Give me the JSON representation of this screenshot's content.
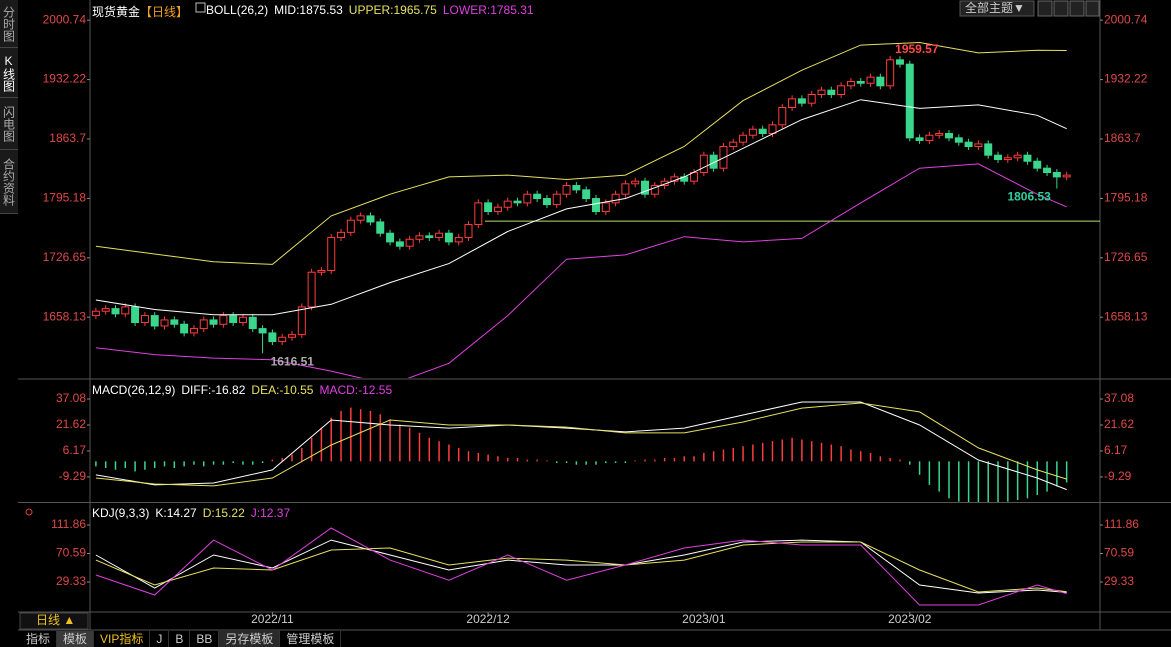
{
  "ui": {
    "sidebar": [
      "分时图",
      "K线图",
      "闪电图",
      "合约资料"
    ],
    "theme_button": "全部主题▼",
    "period_selector": "日线 ▲",
    "bottom_tabs": [
      "指标",
      "模板",
      "VIP指标",
      "J",
      "B",
      "BB",
      "另存模板",
      "管理模板"
    ]
  },
  "chart_data": [
    {
      "type": "candlestick",
      "title": "现货黄金",
      "period": "【日线】",
      "indicator": "BOLL(26,2)",
      "xlim": [
        -0.6,
        102.4
      ],
      "ylim": [
        1588,
        2024
      ],
      "yticks": [
        2000.74,
        1932.22,
        1863.7,
        1795.18,
        1726.65,
        1658.13
      ],
      "up_color": "#ff3c3c",
      "down_color": "#3ad68c",
      "open": [
        1660,
        1665,
        1668,
        1662,
        1670,
        1652,
        1660,
        1648,
        1655,
        1650,
        1640,
        1645,
        1655,
        1650,
        1660,
        1652,
        1658,
        1645,
        1640,
        1630,
        1635,
        1638,
        1670,
        1710,
        1712,
        1750,
        1756,
        1770,
        1775,
        1768,
        1755,
        1745,
        1740,
        1748,
        1752,
        1750,
        1755,
        1745,
        1750,
        1765,
        1790,
        1780,
        1785,
        1792,
        1790,
        1800,
        1795,
        1788,
        1800,
        1810,
        1805,
        1795,
        1780,
        1790,
        1800,
        1812,
        1815,
        1800,
        1810,
        1815,
        1820,
        1815,
        1825,
        1845,
        1830,
        1855,
        1860,
        1868,
        1875,
        1870,
        1880,
        1900,
        1910,
        1905,
        1915,
        1920,
        1915,
        1925,
        1930,
        1928,
        1935,
        1925,
        1955,
        1950,
        1865,
        1862,
        1868,
        1870,
        1865,
        1860,
        1855,
        1858,
        1845,
        1840,
        1842,
        1845,
        1838,
        1830,
        1825,
        1820
      ],
      "high": [
        1669,
        1672,
        1672,
        1674,
        1674,
        1664,
        1664,
        1659,
        1659,
        1654,
        1649,
        1659,
        1659,
        1664,
        1664,
        1662,
        1662,
        1649,
        1644,
        1639,
        1642,
        1674,
        1714,
        1716,
        1754,
        1760,
        1774,
        1779,
        1779,
        1772,
        1759,
        1749,
        1752,
        1756,
        1756,
        1759,
        1759,
        1754,
        1769,
        1794,
        1794,
        1789,
        1796,
        1796,
        1804,
        1804,
        1799,
        1804,
        1814,
        1814,
        1809,
        1799,
        1794,
        1804,
        1816,
        1819,
        1819,
        1814,
        1819,
        1824,
        1824,
        1829,
        1849,
        1849,
        1859,
        1864,
        1872,
        1879,
        1879,
        1884,
        1904,
        1914,
        1914,
        1919,
        1924,
        1924,
        1929,
        1934,
        1934,
        1939,
        1939,
        1959.57,
        1959,
        1954,
        1869,
        1872,
        1874,
        1874,
        1869,
        1864,
        1862,
        1862,
        1849,
        1846,
        1849,
        1849,
        1842,
        1834,
        1829,
        1826
      ],
      "low": [
        1656,
        1661,
        1658,
        1658,
        1648,
        1648,
        1644,
        1644,
        1646,
        1636,
        1636,
        1641,
        1646,
        1646,
        1648,
        1648,
        1641,
        1616.51,
        1626,
        1626,
        1631,
        1634,
        1666,
        1706,
        1708,
        1746,
        1752,
        1766,
        1764,
        1751,
        1741,
        1736,
        1736,
        1744,
        1746,
        1746,
        1741,
        1741,
        1746,
        1761,
        1776,
        1776,
        1781,
        1786,
        1786,
        1791,
        1784,
        1784,
        1796,
        1801,
        1791,
        1776,
        1776,
        1786,
        1796,
        1808,
        1796,
        1796,
        1806,
        1811,
        1811,
        1811,
        1821,
        1826,
        1826,
        1851,
        1856,
        1864,
        1866,
        1866,
        1876,
        1896,
        1901,
        1901,
        1911,
        1911,
        1911,
        1921,
        1924,
        1924,
        1921,
        1921,
        1946,
        1861,
        1858,
        1858,
        1864,
        1861,
        1856,
        1851,
        1851,
        1841,
        1836,
        1836,
        1838,
        1834,
        1826,
        1821,
        1806.53,
        1816
      ],
      "close": [
        1665,
        1668,
        1662,
        1670,
        1652,
        1660,
        1648,
        1655,
        1650,
        1640,
        1645,
        1655,
        1650,
        1660,
        1652,
        1658,
        1645,
        1640,
        1630,
        1635,
        1638,
        1670,
        1710,
        1712,
        1750,
        1756,
        1770,
        1775,
        1768,
        1755,
        1745,
        1740,
        1748,
        1752,
        1750,
        1755,
        1745,
        1750,
        1765,
        1790,
        1780,
        1785,
        1792,
        1790,
        1800,
        1795,
        1788,
        1800,
        1810,
        1805,
        1795,
        1780,
        1790,
        1800,
        1812,
        1815,
        1800,
        1810,
        1815,
        1820,
        1815,
        1825,
        1845,
        1830,
        1855,
        1860,
        1868,
        1875,
        1870,
        1880,
        1900,
        1910,
        1905,
        1915,
        1920,
        1915,
        1925,
        1930,
        1928,
        1935,
        1925,
        1955,
        1950,
        1865,
        1862,
        1868,
        1870,
        1865,
        1860,
        1855,
        1858,
        1845,
        1840,
        1842,
        1845,
        1838,
        1830,
        1825,
        1820,
        1822
      ],
      "hline": 1769,
      "hline_color": "#b8e070",
      "series": [
        {
          "name": "MID:1875.53",
          "color": "#ffffff",
          "x": [
            0,
            6,
            12,
            18,
            24,
            30,
            36,
            42,
            48,
            54,
            60,
            66,
            72,
            78,
            84,
            90,
            96,
            99
          ],
          "values": [
            1678,
            1667,
            1661,
            1661,
            1673,
            1698,
            1720,
            1757,
            1783,
            1795,
            1820,
            1853,
            1886,
            1909,
            1899,
            1903,
            1891,
            1875.53
          ]
        },
        {
          "name": "UPPER:1965.75",
          "color": "#e8e060",
          "x": [
            0,
            6,
            12,
            18,
            24,
            30,
            36,
            42,
            48,
            54,
            60,
            66,
            72,
            78,
            84,
            90,
            96,
            99
          ],
          "values": [
            1740,
            1731,
            1722,
            1719,
            1775,
            1800,
            1820,
            1822,
            1817,
            1822,
            1855,
            1908,
            1943,
            1972,
            1975,
            1963,
            1966,
            1965.75
          ]
        },
        {
          "name": "LOWER:1785.31",
          "color": "#e040e0",
          "x": [
            0,
            6,
            12,
            18,
            24,
            30,
            36,
            42,
            48,
            54,
            60,
            66,
            72,
            78,
            84,
            90,
            96,
            99
          ],
          "values": [
            1623,
            1615,
            1611,
            1609,
            1596,
            1580,
            1605,
            1660,
            1725,
            1730,
            1751,
            1745,
            1749,
            1790,
            1830,
            1835,
            1800,
            1785.31
          ]
        }
      ]
    },
    {
      "type": "macd",
      "title": "MACD(26,12,9)",
      "xlim": [
        -0.6,
        102.4
      ],
      "ylim": [
        -24.2,
        48.4
      ],
      "yticks": [
        37.08,
        21.62,
        6.17,
        -9.29
      ],
      "histogram": {
        "name": "MACD:-12.55",
        "color": "#e040e0",
        "up_color": "#ff3c3c",
        "down_color": "#3ad68c",
        "values": [
          -3,
          -4,
          -5,
          -4,
          -6,
          -5,
          -4,
          -3,
          -4,
          -3,
          -2,
          -3,
          -2,
          -2,
          -1,
          -2,
          -2,
          -1,
          1,
          2,
          4,
          8,
          14,
          20,
          26,
          30,
          32,
          31,
          30,
          28,
          25,
          22,
          20,
          17,
          14,
          12,
          10,
          8,
          6,
          5,
          4,
          3,
          2,
          2,
          1,
          1,
          0.5,
          -1,
          -1,
          -2,
          -2,
          -2,
          -1,
          -1,
          -1,
          0.5,
          1,
          1,
          2,
          2,
          3,
          3,
          5,
          6,
          7,
          8,
          9,
          10,
          11,
          12,
          13,
          14,
          13,
          12,
          11,
          10,
          9,
          7,
          6,
          5,
          3,
          2,
          1,
          -2,
          -8,
          -14,
          -18,
          -22,
          -24,
          -25,
          -26,
          -26,
          -25,
          -24,
          -23,
          -22,
          -20,
          -18,
          -15,
          -12.55
        ]
      },
      "series": [
        {
          "name": "DIFF:-16.82",
          "color": "#ffffff",
          "x": [
            0,
            6,
            12,
            18,
            24,
            30,
            36,
            42,
            48,
            54,
            60,
            66,
            72,
            78,
            84,
            90,
            96,
            99
          ],
          "values": [
            -8.1,
            -14,
            -12.9,
            -5.1,
            24.6,
            21.6,
            19.8,
            21.6,
            19.8,
            17.5,
            19.8,
            27.6,
            35.3,
            35.3,
            21.6,
            0.8,
            -9.9,
            -16.82
          ]
        },
        {
          "name": "DEA:-10.55",
          "color": "#e8e060",
          "x": [
            0,
            6,
            12,
            18,
            24,
            30,
            36,
            42,
            48,
            54,
            60,
            66,
            72,
            78,
            84,
            90,
            96,
            99
          ],
          "values": [
            -9.9,
            -13.5,
            -14.6,
            -9.9,
            9.7,
            24.6,
            21.6,
            21.6,
            20.4,
            16.9,
            16.9,
            23.4,
            31.7,
            34.7,
            29.4,
            8.0,
            -5.1,
            -10.55
          ]
        }
      ]
    },
    {
      "type": "line",
      "title": "KDJ(9,3,3)",
      "xlim": [
        -0.6,
        102.4
      ],
      "ylim": [
        -14.1,
        143.7
      ],
      "yticks": [
        111.86,
        70.59,
        29.33
      ],
      "xticks": [
        {
          "value": 18,
          "label": "2022/11"
        },
        {
          "value": 40,
          "label": "2022/12"
        },
        {
          "value": 62,
          "label": "2023/01"
        },
        {
          "value": 83,
          "label": "2023/02"
        }
      ],
      "series": [
        {
          "name": "K:14.27",
          "color": "#ffffff",
          "x": [
            0,
            6,
            12,
            18,
            24,
            30,
            36,
            42,
            48,
            54,
            60,
            66,
            72,
            78,
            84,
            90,
            96,
            99
          ],
          "values": [
            68.4,
            20.6,
            68.4,
            49.6,
            90,
            68.4,
            46.7,
            61,
            54,
            54,
            68.4,
            87.2,
            90,
            87.2,
            25,
            13.4,
            17.7,
            14.27
          ]
        },
        {
          "name": "D:15.22",
          "color": "#e8e060",
          "x": [
            0,
            6,
            12,
            18,
            24,
            30,
            36,
            42,
            48,
            54,
            60,
            66,
            72,
            78,
            84,
            90,
            96,
            99
          ],
          "values": [
            61,
            25,
            49.6,
            46.7,
            75.6,
            78.6,
            54,
            64,
            61,
            54,
            61,
            82.9,
            87.2,
            87.2,
            46.7,
            14.9,
            20.6,
            15.22
          ]
        },
        {
          "name": "J:12.37",
          "color": "#e040e0",
          "x": [
            0,
            6,
            12,
            18,
            24,
            30,
            36,
            42,
            48,
            54,
            60,
            66,
            72,
            78,
            84,
            90,
            96,
            99
          ],
          "values": [
            39.5,
            10.5,
            90,
            46.7,
            107.5,
            61,
            32,
            68.4,
            32,
            54,
            78.6,
            90,
            82.9,
            82.9,
            -4,
            -4,
            25,
            12.37
          ]
        }
      ]
    }
  ]
}
